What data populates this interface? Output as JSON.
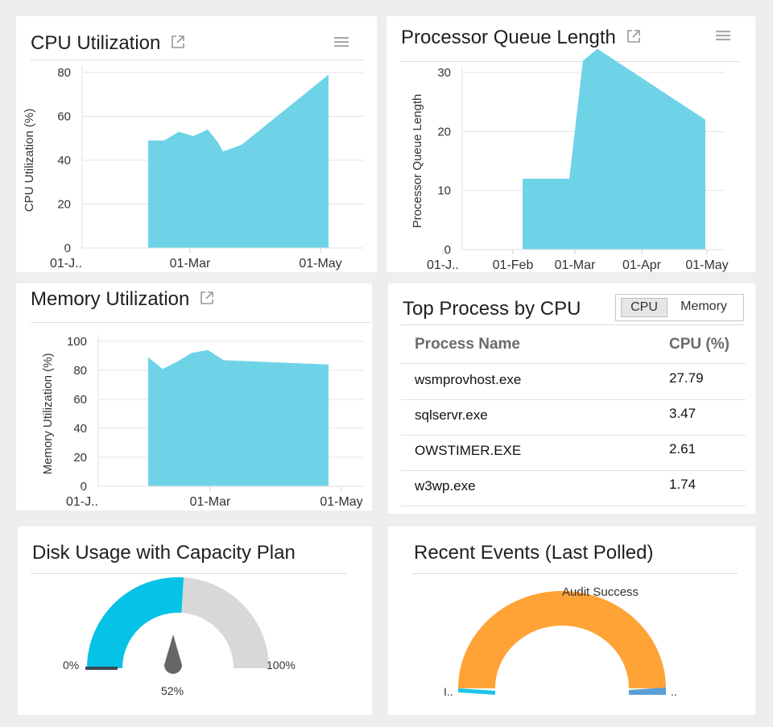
{
  "colors": {
    "area": "#6fd3e8",
    "gauge_fill": "#05c3e6",
    "gauge_rest": "#d8d8d8",
    "needle": "#666666",
    "orange": "#ffa336",
    "cyan": "#1cc4e8",
    "blue": "#5b9fd6"
  },
  "cpu": {
    "title": "CPU Utilization",
    "ylabel": "CPU Utilization (%)",
    "y_ticks": [
      "80",
      "60",
      "40",
      "20",
      "0"
    ],
    "x_ticks": [
      "01-J..",
      "01-Mar",
      "01-May"
    ]
  },
  "queue": {
    "title": "Processor Queue Length",
    "ylabel": "Processor Queue Length",
    "y_ticks": [
      "30",
      "20",
      "10",
      "0"
    ],
    "x_ticks": [
      "01-J..",
      "01-Feb",
      "01-Mar",
      "01-Apr",
      "01-May"
    ]
  },
  "memory": {
    "title": "Memory Utilization",
    "ylabel": "Memory Utilization (%)",
    "y_ticks": [
      "100",
      "80",
      "60",
      "40",
      "20",
      "0"
    ],
    "x_ticks": [
      "01-J..",
      "01-Mar",
      "01-May"
    ]
  },
  "top_process": {
    "title": "Top Process by CPU",
    "toggle": {
      "cpu": "CPU",
      "memory": "Memory"
    },
    "headers": {
      "name": "Process Name",
      "value": "CPU (%)"
    },
    "rows": [
      {
        "name": "wsmprovhost.exe",
        "value": "27.79"
      },
      {
        "name": "sqlservr.exe",
        "value": "3.47"
      },
      {
        "name": "OWSTIMER.EXE",
        "value": "2.61"
      },
      {
        "name": "w3wp.exe",
        "value": "1.74"
      }
    ]
  },
  "disk": {
    "title": "Disk Usage with Capacity Plan",
    "min_label": "0%",
    "max_label": "100%",
    "value_label": "52%",
    "value_fraction": 0.52
  },
  "events": {
    "title": "Recent Events (Last Polled)",
    "top_label": "Audit Success",
    "left_label": "I..",
    "right_label": ".."
  },
  "chart_data": [
    {
      "type": "area",
      "title": "CPU Utilization",
      "ylabel": "CPU Utilization (%)",
      "x_ticks": [
        "01-J..",
        "01-Mar",
        "01-May"
      ],
      "y_ticks": [
        0,
        20,
        40,
        60,
        80
      ],
      "series": [
        {
          "values": [
            49,
            49,
            53,
            51,
            54,
            48,
            44,
            47,
            79
          ]
        }
      ]
    },
    {
      "type": "area",
      "title": "Processor Queue Length",
      "ylabel": "Processor Queue Length",
      "x_ticks": [
        "01-J..",
        "01-Feb",
        "01-Mar",
        "01-Apr",
        "01-May"
      ],
      "y_ticks": [
        0,
        10,
        20,
        30
      ],
      "series": [
        {
          "values": [
            12,
            12,
            32,
            34,
            22
          ]
        }
      ]
    },
    {
      "type": "area",
      "title": "Memory Utilization",
      "ylabel": "Memory Utilization (%)",
      "x_ticks": [
        "01-J..",
        "01-Mar",
        "01-May"
      ],
      "y_ticks": [
        0,
        20,
        40,
        60,
        80,
        100
      ],
      "series": [
        {
          "values": [
            89,
            81,
            86,
            92,
            94,
            87,
            84
          ]
        }
      ]
    }
  ]
}
